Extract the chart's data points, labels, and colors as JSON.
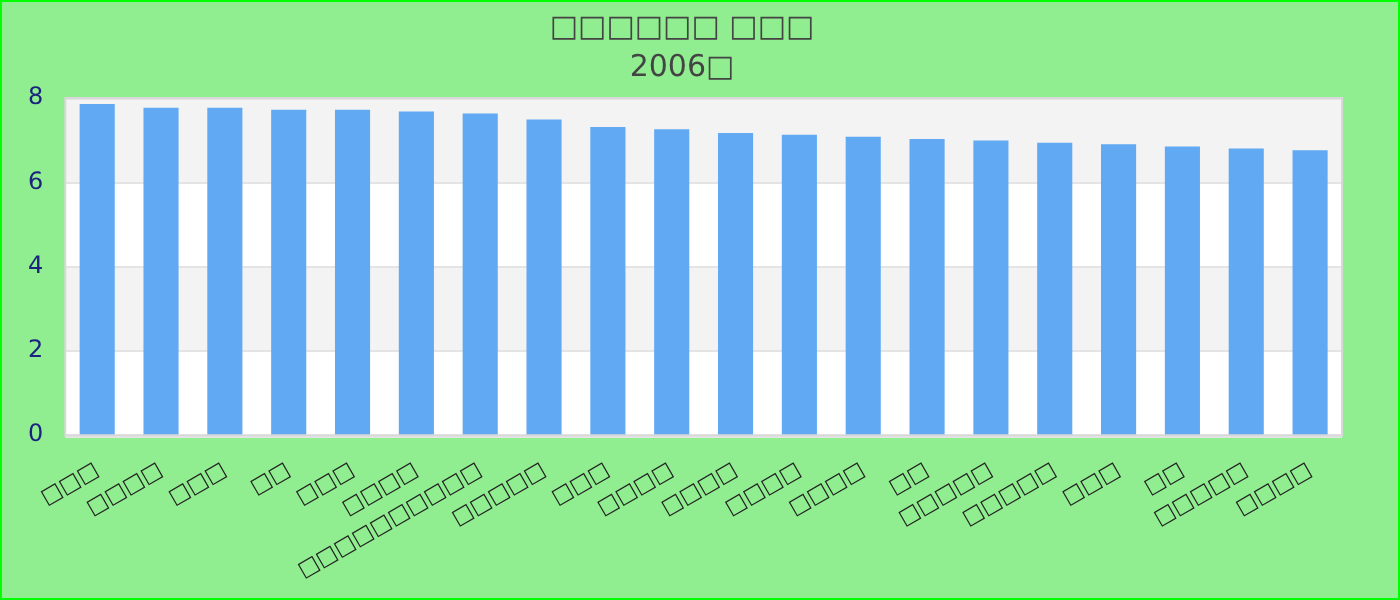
{
  "chart_data": {
    "type": "bar",
    "title": "□□□□□□ □□□",
    "subtitle": "2006□",
    "categories": [
      "□□□",
      "□□□□",
      "□□□",
      "□□",
      "□□□",
      "□□□□",
      "□□□□□□□□□□",
      "□□□□□",
      "□□□",
      "□□□□",
      "□□□□",
      "□□□□",
      "□□□□",
      "□□",
      "□□□□□",
      "□□□□□",
      "□□□",
      "□□",
      "□□□□□",
      "□□□□"
    ],
    "values": [
      7.86,
      7.77,
      7.77,
      7.72,
      7.72,
      7.68,
      7.63,
      7.49,
      7.31,
      7.26,
      7.17,
      7.13,
      7.08,
      7.03,
      6.99,
      6.94,
      6.9,
      6.85,
      6.8,
      6.76
    ],
    "color": "#61a9f3",
    "ylim": [
      0,
      8
    ],
    "yticks": [
      0,
      2,
      4,
      6,
      8
    ],
    "grid": "y",
    "legend": false
  }
}
